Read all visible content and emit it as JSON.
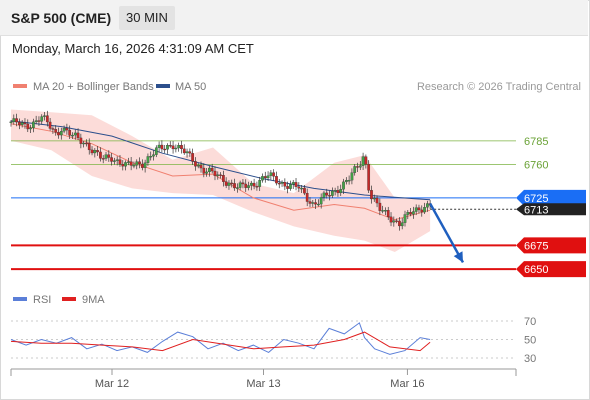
{
  "header": {
    "title": "S&P 500 (CME)",
    "interval": "30 MIN"
  },
  "datetime": "Monday, March 16, 2026 4:31:09 AM CET",
  "legend": {
    "items": [
      {
        "name": "MA 20 + Bollinger Bands",
        "color": "#f08070"
      },
      {
        "name": "MA 50",
        "color": "#2c4f8c"
      }
    ],
    "copyright": "Research © 2026 Trading Central"
  },
  "rsi_legend": {
    "items": [
      {
        "name": "RSI",
        "color": "#5b7fd8"
      },
      {
        "name": "9MA",
        "color": "#e02020"
      }
    ]
  },
  "chart_data": [
    {
      "type": "line",
      "panel": "price",
      "ylim": [
        6628,
        6828
      ],
      "xlim": [
        0,
        100
      ],
      "x_ticks": [
        {
          "label": "Mar 12",
          "x": 20
        },
        {
          "label": "Mar 13",
          "x": 50
        },
        {
          "label": "Mar 16",
          "x": 78.5
        }
      ],
      "grid": false,
      "levels": [
        {
          "value": 6785,
          "label": "6785",
          "kind": "resistance",
          "color": "#7cb342"
        },
        {
          "value": 6760,
          "label": "6760",
          "kind": "resistance",
          "color": "#7cb342"
        },
        {
          "value": 6725,
          "label": "6725",
          "kind": "pivot",
          "color": "#1a6ef5"
        },
        {
          "value": 6675,
          "label": "6675",
          "kind": "support",
          "color": "#e01010"
        },
        {
          "value": 6650,
          "label": "6650",
          "kind": "support",
          "color": "#e01010"
        }
      ],
      "last_price": {
        "value": 6713,
        "label": "6713"
      },
      "forecast_arrow": {
        "from": [
          83,
          6719
        ],
        "to": [
          89.5,
          6657
        ]
      },
      "series": [
        {
          "name": "MA 50",
          "color": "#2c4f8c",
          "x": [
            0,
            10,
            20,
            30,
            40,
            50,
            60,
            70,
            80,
            83
          ],
          "values": [
            6806,
            6800,
            6790,
            6772,
            6758,
            6745,
            6735,
            6728,
            6724,
            6723
          ]
        },
        {
          "name": "MA 20",
          "color": "#f08070",
          "x": [
            0,
            8,
            16,
            24,
            32,
            40,
            48,
            56,
            64,
            70,
            76,
            83
          ],
          "values": [
            6803,
            6795,
            6782,
            6762,
            6748,
            6750,
            6725,
            6712,
            6718,
            6714,
            6702,
            6712
          ]
        },
        {
          "name": "Bollinger Upper",
          "x": [
            0,
            8,
            16,
            24,
            32,
            40,
            48,
            56,
            64,
            70,
            76,
            83
          ],
          "values": [
            6818,
            6815,
            6812,
            6790,
            6765,
            6778,
            6740,
            6730,
            6762,
            6770,
            6725,
            6725
          ]
        },
        {
          "name": "Bollinger Lower",
          "x": [
            0,
            8,
            16,
            24,
            32,
            40,
            48,
            56,
            64,
            70,
            76,
            83
          ],
          "values": [
            6785,
            6775,
            6748,
            6735,
            6730,
            6728,
            6710,
            6695,
            6685,
            6680,
            6668,
            6690
          ]
        },
        {
          "name": "Price",
          "x": [
            0,
            3,
            6,
            9,
            10,
            12,
            15,
            18,
            20,
            23,
            26,
            29,
            32,
            35,
            38,
            40,
            42,
            45,
            48,
            51,
            54,
            57,
            60,
            62,
            64,
            67,
            69,
            70,
            71,
            73,
            75,
            77,
            79,
            81,
            83
          ],
          "values": [
            6805,
            6800,
            6810,
            6792,
            6800,
            6790,
            6782,
            6765,
            6768,
            6758,
            6762,
            6775,
            6782,
            6770,
            6755,
            6750,
            6745,
            6735,
            6740,
            6748,
            6740,
            6735,
            6718,
            6725,
            6732,
            6745,
            6760,
            6772,
            6730,
            6712,
            6705,
            6698,
            6708,
            6715,
            6718
          ]
        }
      ]
    },
    {
      "type": "line",
      "panel": "rsi",
      "ylim": [
        30,
        70
      ],
      "y_ticks": [
        70,
        50,
        30
      ],
      "series": [
        {
          "name": "RSI",
          "color": "#5b7fd8",
          "x": [
            0,
            3,
            6,
            9,
            12,
            15,
            18,
            21,
            24,
            27,
            30,
            33,
            36,
            39,
            42,
            45,
            48,
            51,
            54,
            57,
            60,
            63,
            66,
            69,
            70,
            72,
            75,
            78,
            81,
            83
          ],
          "values": [
            50,
            44,
            50,
            46,
            52,
            40,
            45,
            38,
            42,
            36,
            48,
            58,
            53,
            40,
            46,
            38,
            44,
            36,
            50,
            46,
            40,
            62,
            56,
            68,
            52,
            40,
            34,
            38,
            52,
            50
          ]
        },
        {
          "name": "9MA",
          "color": "#e02020",
          "x": [
            0,
            6,
            12,
            18,
            24,
            30,
            36,
            42,
            48,
            54,
            60,
            66,
            70,
            75,
            81,
            83
          ],
          "values": [
            48,
            46,
            46,
            44,
            42,
            38,
            50,
            45,
            40,
            42,
            44,
            50,
            58,
            42,
            38,
            47
          ]
        }
      ]
    }
  ]
}
